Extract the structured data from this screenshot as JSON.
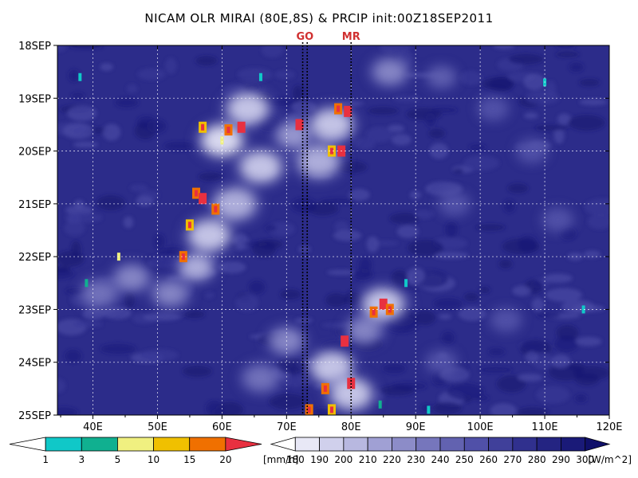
{
  "chart_data": {
    "type": "heatmap",
    "title": "NICAM OLR MIRAI (80E,8S) & PRCIP init:00Z18SEP2011",
    "x_ticks": [
      "40E",
      "50E",
      "60E",
      "70E",
      "80E",
      "90E",
      "100E",
      "110E",
      "120E"
    ],
    "x_tick_values": [
      40,
      50,
      60,
      70,
      80,
      90,
      100,
      110,
      120
    ],
    "xlim": [
      34.5,
      120
    ],
    "y_ticks": [
      "18SEP",
      "19SEP",
      "20SEP",
      "21SEP",
      "22SEP",
      "23SEP",
      "24SEP",
      "25SEP"
    ],
    "ylim_days": [
      18,
      25
    ],
    "y_direction": "downward",
    "grid": true,
    "reference_lines": [
      {
        "label": "GO",
        "lon": [
          72.5,
          73.2
        ]
      },
      {
        "label": "MR",
        "lon": [
          80
        ]
      }
    ],
    "olr_colorbar": {
      "levels": [
        "180",
        "190",
        "200",
        "210",
        "220",
        "230",
        "240",
        "250",
        "260",
        "270",
        "280",
        "290",
        "300"
      ],
      "unit": "[W/m^2]",
      "colors": [
        "#ffffff",
        "#e8e8f6",
        "#d0d0ec",
        "#b8b8e0",
        "#a0a0d4",
        "#8c8cc8",
        "#7676bc",
        "#6262b0",
        "#5050a8",
        "#40409a",
        "#30308e",
        "#242482",
        "#1a1a78",
        "#10106a"
      ]
    },
    "precip_colorbar": {
      "levels": [
        "1",
        "3",
        "5",
        "10",
        "15",
        "20"
      ],
      "unit": "[mm/h]",
      "colors": [
        "#ffffff",
        "#10c8c8",
        "#10b090",
        "#f0f080",
        "#f0c000",
        "#f07000",
        "#e83040"
      ]
    },
    "cloud_systems": [
      {
        "lon": 64,
        "day": 19.2,
        "olr": 185
      },
      {
        "lon": 60,
        "day": 19.8,
        "olr": 182
      },
      {
        "lon": 66,
        "day": 20.3,
        "olr": 190
      },
      {
        "lon": 62,
        "day": 21.0,
        "olr": 195
      },
      {
        "lon": 58,
        "day": 21.6,
        "olr": 190
      },
      {
        "lon": 56,
        "day": 22.2,
        "olr": 200
      },
      {
        "lon": 52,
        "day": 22.7,
        "olr": 215
      },
      {
        "lon": 46,
        "day": 22.4,
        "olr": 220
      },
      {
        "lon": 41,
        "day": 22.7,
        "olr": 225
      },
      {
        "lon": 77,
        "day": 19.5,
        "olr": 185
      },
      {
        "lon": 75,
        "day": 20.2,
        "olr": 195
      },
      {
        "lon": 71,
        "day": 19.7,
        "olr": 205
      },
      {
        "lon": 86,
        "day": 18.5,
        "olr": 220
      },
      {
        "lon": 94,
        "day": 18.6,
        "olr": 235
      },
      {
        "lon": 85,
        "day": 22.9,
        "olr": 185
      },
      {
        "lon": 82,
        "day": 23.4,
        "olr": 215
      },
      {
        "lon": 77,
        "day": 24.1,
        "olr": 190
      },
      {
        "lon": 80,
        "day": 24.6,
        "olr": 190
      },
      {
        "lon": 70,
        "day": 23.6,
        "olr": 215
      },
      {
        "lon": 66,
        "day": 24.3,
        "olr": 225
      },
      {
        "lon": 102,
        "day": 19.2,
        "olr": 245
      },
      {
        "lon": 108,
        "day": 20.0,
        "olr": 245
      },
      {
        "lon": 112,
        "day": 21.3,
        "olr": 250
      },
      {
        "lon": 96,
        "day": 21.0,
        "olr": 250
      },
      {
        "lon": 104,
        "day": 23.2,
        "olr": 250
      },
      {
        "lon": 94,
        "day": 24.0,
        "olr": 245
      }
    ],
    "precip_cells": [
      {
        "lon": 63,
        "day": 19.55,
        "rate": 20
      },
      {
        "lon": 61,
        "day": 19.6,
        "rate": 15
      },
      {
        "lon": 57,
        "day": 19.55,
        "rate": 10
      },
      {
        "lon": 60,
        "day": 19.8,
        "rate": 5
      },
      {
        "lon": 72,
        "day": 19.5,
        "rate": 20
      },
      {
        "lon": 78,
        "day": 19.2,
        "rate": 15
      },
      {
        "lon": 79.5,
        "day": 19.25,
        "rate": 20
      },
      {
        "lon": 77,
        "day": 20.0,
        "rate": 10
      },
      {
        "lon": 78.5,
        "day": 20.0,
        "rate": 20
      },
      {
        "lon": 56,
        "day": 20.8,
        "rate": 15
      },
      {
        "lon": 57,
        "day": 20.9,
        "rate": 20
      },
      {
        "lon": 55,
        "day": 21.4,
        "rate": 10
      },
      {
        "lon": 59,
        "day": 21.1,
        "rate": 15
      },
      {
        "lon": 54,
        "day": 22.0,
        "rate": 15
      },
      {
        "lon": 44,
        "day": 22.0,
        "rate": 5
      },
      {
        "lon": 39,
        "day": 22.5,
        "rate": 3
      },
      {
        "lon": 85,
        "day": 22.9,
        "rate": 20
      },
      {
        "lon": 86,
        "day": 23.0,
        "rate": 15
      },
      {
        "lon": 83.5,
        "day": 23.05,
        "rate": 15
      },
      {
        "lon": 88.5,
        "day": 22.5,
        "rate": 1
      },
      {
        "lon": 76,
        "day": 24.5,
        "rate": 15
      },
      {
        "lon": 80,
        "day": 24.4,
        "rate": 20
      },
      {
        "lon": 77,
        "day": 24.9,
        "rate": 10
      },
      {
        "lon": 73.5,
        "day": 24.9,
        "rate": 15
      },
      {
        "lon": 79,
        "day": 23.6,
        "rate": 20
      },
      {
        "lon": 84.5,
        "day": 24.8,
        "rate": 3
      },
      {
        "lon": 92,
        "day": 24.9,
        "rate": 1
      },
      {
        "lon": 116,
        "day": 23.0,
        "rate": 1
      },
      {
        "lon": 110,
        "day": 18.7,
        "rate": 1
      },
      {
        "lon": 38,
        "day": 18.6,
        "rate": 1
      },
      {
        "lon": 66,
        "day": 18.6,
        "rate": 1
      }
    ]
  }
}
